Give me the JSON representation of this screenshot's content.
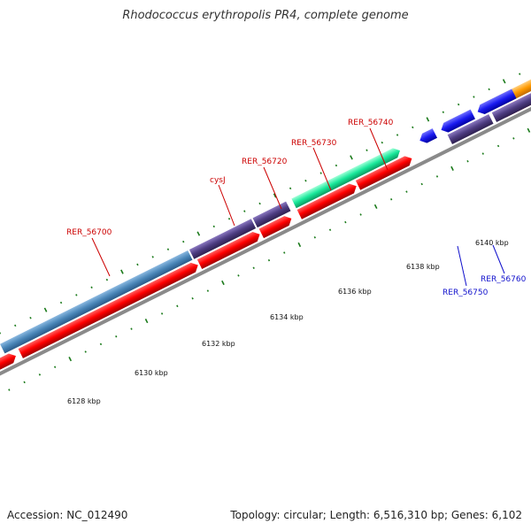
{
  "title": "Rhodococcus erythropolis PR4, complete genome",
  "accession": "Accession: NC_012490",
  "topology": "Topology: circular; Length: 6,516,310 bp; Genes: 6,102",
  "gene_labels": [
    {
      "text": "RER_56700",
      "color": "#cc0000"
    },
    {
      "text": "cysJ",
      "color": "#cc0000"
    },
    {
      "text": "RER_56720",
      "color": "#cc0000"
    },
    {
      "text": "RER_56730",
      "color": "#cc0000"
    },
    {
      "text": "RER_56740",
      "color": "#cc0000"
    },
    {
      "text": "RER_56750",
      "color": "#1010cc"
    },
    {
      "text": "RER_56760",
      "color": "#1010cc"
    }
  ],
  "tick_labels": [
    "6128 kbp",
    "6130 kbp",
    "6132 kbp",
    "6134 kbp",
    "6136 kbp",
    "6138 kbp",
    "6140 kbp"
  ],
  "colors": {
    "red_gene": "#ff0000",
    "steelblue_gene": "#4a86b8",
    "purple_gene": "#4e3d82",
    "teal_gene": "#19e89a",
    "blue_gene": "#1a1af0",
    "gray_gene": "#707070",
    "orange_gene": "#ff9a00",
    "tick_green": "#1a7a1a",
    "backbone": "#8a8a8a"
  }
}
